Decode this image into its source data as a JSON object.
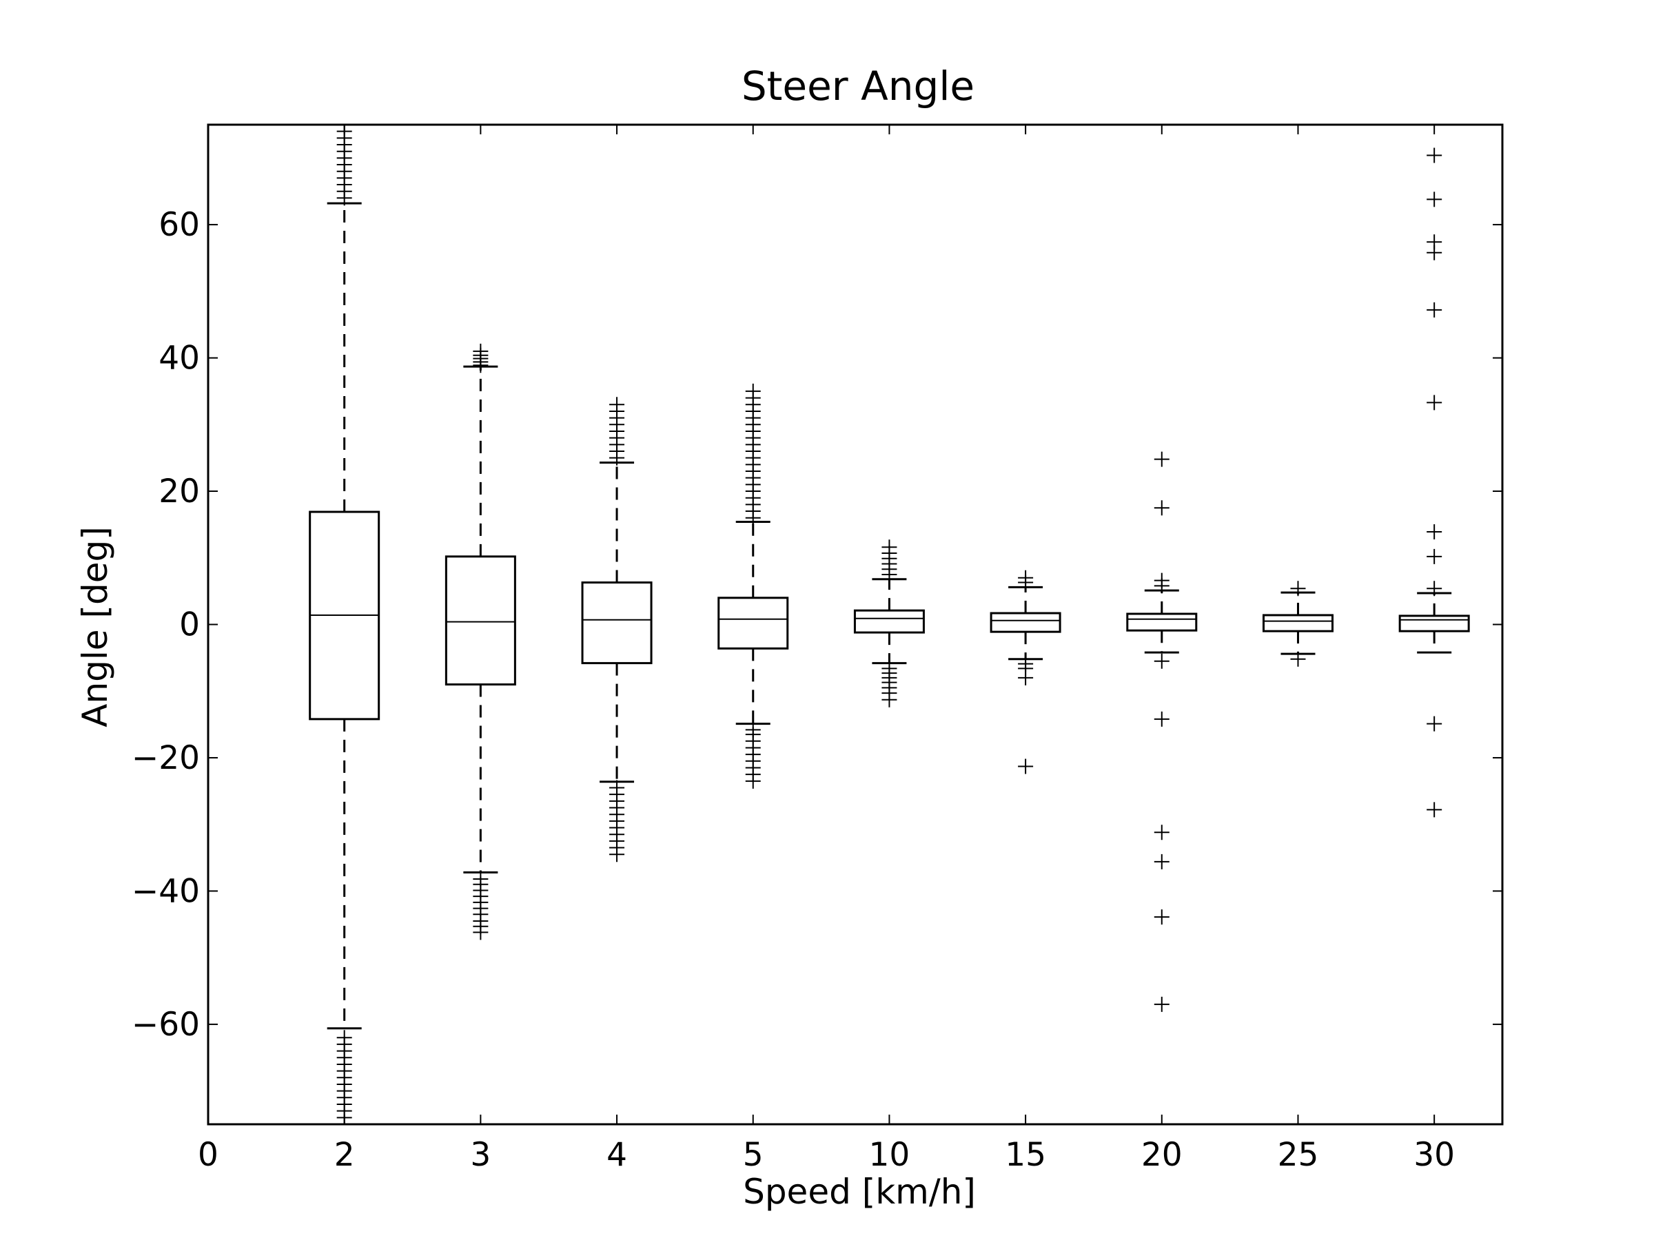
{
  "chart_data": {
    "type": "box",
    "title": "Steer Angle",
    "xlabel": "Speed [km/h]",
    "ylabel": "Angle [deg]",
    "ylim": [
      -75,
      75
    ],
    "x_tick_labels": [
      "0",
      "2",
      "3",
      "4",
      "5",
      "10",
      "15",
      "20",
      "25",
      "30"
    ],
    "y_ticks": [
      -60,
      -40,
      -20,
      0,
      20,
      40,
      60
    ],
    "y_tick_labels": [
      "−60",
      "−40",
      "−20",
      "0",
      "20",
      "40",
      "60"
    ],
    "grid": false,
    "legend": "none",
    "boxes": [
      {
        "category": "2",
        "whislo": -60.6,
        "q1": -14.2,
        "median": 1.4,
        "q3": 16.9,
        "whishi": 63.2,
        "fliers": [
          -75,
          -74,
          -73,
          -72,
          -71,
          -70,
          -69,
          -68,
          -67,
          -66,
          -65,
          -64,
          -63,
          -62,
          64,
          65,
          66,
          67,
          68,
          69,
          70,
          71,
          72,
          73,
          74,
          75
        ]
      },
      {
        "category": "3",
        "whislo": -37.2,
        "q1": -9.0,
        "median": 0.4,
        "q3": 10.2,
        "whishi": 38.7,
        "fliers": [
          -46.2,
          -45.3,
          -44.5,
          -43.5,
          -42.6,
          -41.7,
          -40.8,
          -39.9,
          -39.0,
          -38.2,
          38.9,
          39.4,
          39.9,
          40.4,
          41.0
        ]
      },
      {
        "category": "4",
        "whislo": -23.6,
        "q1": -5.8,
        "median": 0.7,
        "q3": 6.3,
        "whishi": 24.3,
        "fliers": [
          -34.5,
          -33.5,
          -32.5,
          -31.5,
          -30.5,
          -29.5,
          -28.5,
          -27.5,
          -26.5,
          -25.5,
          -24.5,
          25,
          26,
          27,
          28,
          29,
          30,
          31,
          32,
          33
        ]
      },
      {
        "category": "5",
        "whislo": -14.9,
        "q1": -3.6,
        "median": 0.8,
        "q3": 4.0,
        "whishi": 15.4,
        "fliers": [
          -23.5,
          -22.5,
          -21.5,
          -20.5,
          -19.5,
          -18.5,
          -17.5,
          -16.5,
          -15.8,
          16,
          17,
          18,
          19,
          20,
          21,
          22,
          23,
          24,
          25,
          26,
          27,
          28,
          29,
          30,
          31,
          32,
          33,
          34,
          35
        ]
      },
      {
        "category": "10",
        "whislo": -5.8,
        "q1": -1.2,
        "median": 0.9,
        "q3": 2.1,
        "whishi": 6.8,
        "fliers": [
          -11.3,
          -10.3,
          -9.5,
          -8.7,
          -8.0,
          -7.3,
          -6.6,
          7.5,
          8.3,
          9.1,
          9.9,
          10.7,
          11.6
        ]
      },
      {
        "category": "15",
        "whislo": -5.2,
        "q1": -1.1,
        "median": 0.6,
        "q3": 1.7,
        "whishi": 5.6,
        "fliers": [
          -21.3,
          -8.0,
          -6.6,
          -5.9,
          6.3,
          7.0
        ]
      },
      {
        "category": "20",
        "whislo": -4.2,
        "q1": -0.9,
        "median": 0.8,
        "q3": 1.6,
        "whishi": 5.1,
        "fliers": [
          -57.0,
          -43.9,
          -35.6,
          -31.2,
          -14.2,
          -5.5,
          5.8,
          6.6,
          17.5,
          24.8
        ]
      },
      {
        "category": "25",
        "whislo": -4.4,
        "q1": -1.0,
        "median": 0.5,
        "q3": 1.4,
        "whishi": 4.8,
        "fliers": [
          -5.2,
          5.4
        ]
      },
      {
        "category": "30",
        "whislo": -4.2,
        "q1": -1.0,
        "median": 0.7,
        "q3": 1.3,
        "whishi": 4.7,
        "fliers": [
          -27.8,
          -14.9,
          5.4,
          10.2,
          13.9,
          33.3,
          47.2,
          55.8,
          57.4,
          63.8,
          70.4
        ]
      }
    ]
  }
}
